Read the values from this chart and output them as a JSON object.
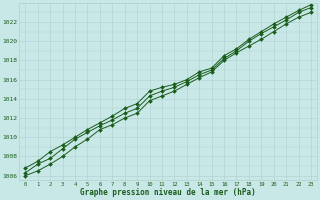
{
  "xlabel": "Graphe pression niveau de la mer (hPa)",
  "background_color": "#c8e8e8",
  "grid_color": "#b0d0d0",
  "line_color": "#1a5c1a",
  "xlim": [
    -0.5,
    23.5
  ],
  "ylim": [
    1005.5,
    1024.0
  ],
  "yticks": [
    1006,
    1008,
    1010,
    1012,
    1014,
    1016,
    1018,
    1020,
    1022
  ],
  "xticks": [
    0,
    1,
    2,
    3,
    4,
    5,
    6,
    7,
    8,
    9,
    10,
    11,
    12,
    13,
    14,
    15,
    16,
    17,
    18,
    19,
    20,
    21,
    22,
    23
  ],
  "series": {
    "line_top": [
      1006.8,
      1007.5,
      1008.5,
      1009.2,
      1010.0,
      1010.8,
      1011.5,
      1012.2,
      1013.0,
      1013.5,
      1014.8,
      1015.2,
      1015.5,
      1016.0,
      1016.8,
      1017.2,
      1018.5,
      1019.2,
      1020.2,
      1021.0,
      1021.8,
      1022.5,
      1023.2,
      1023.8
    ],
    "line_mid": [
      1006.3,
      1007.2,
      1007.8,
      1008.8,
      1009.8,
      1010.5,
      1011.2,
      1011.8,
      1012.5,
      1013.0,
      1014.3,
      1014.8,
      1015.2,
      1015.8,
      1016.5,
      1017.0,
      1018.2,
      1019.0,
      1020.0,
      1020.8,
      1021.5,
      1022.2,
      1023.0,
      1023.5
    ],
    "line_bot": [
      1006.0,
      1006.5,
      1007.2,
      1008.0,
      1009.0,
      1009.8,
      1010.8,
      1011.3,
      1012.0,
      1012.5,
      1013.8,
      1014.3,
      1014.8,
      1015.5,
      1016.2,
      1016.8,
      1018.0,
      1018.8,
      1019.5,
      1020.2,
      1021.0,
      1021.8,
      1022.5,
      1023.0
    ]
  }
}
